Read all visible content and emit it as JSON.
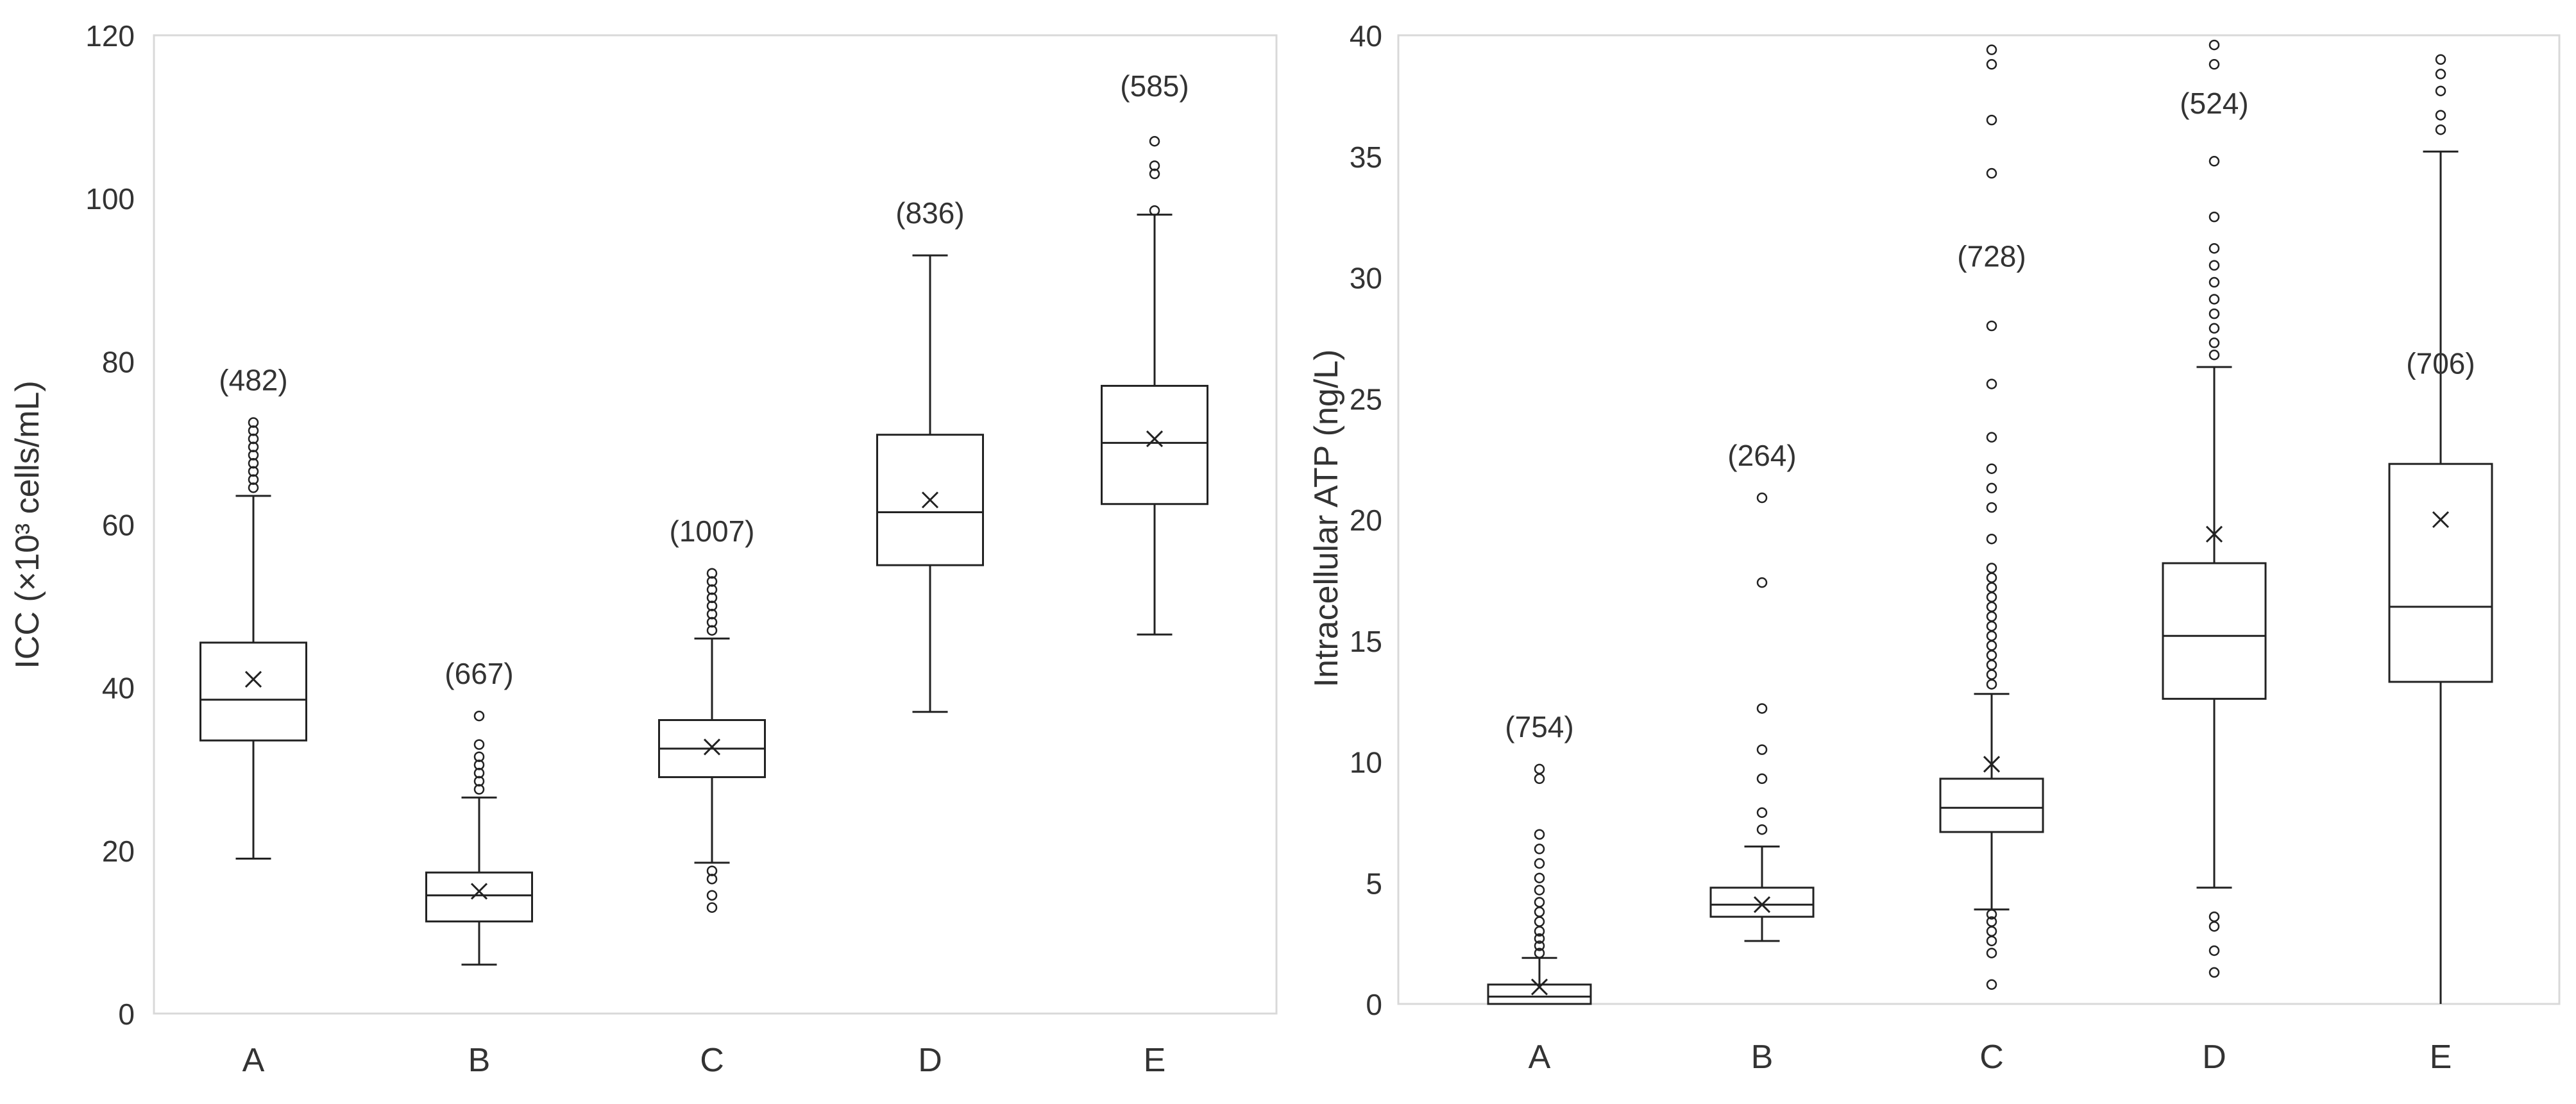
{
  "chart_data": [
    {
      "type": "box",
      "title": "",
      "xlabel": "",
      "ylabel": "ICC (×10³ cells/mL)",
      "ylim": [
        0,
        120
      ],
      "yticks": [
        0,
        20,
        40,
        60,
        80,
        100,
        120
      ],
      "ytick_labels": [
        "0",
        "20",
        "40",
        "60",
        "80",
        "100",
        "120"
      ],
      "grid": false,
      "categories": [
        "A",
        "B",
        "C",
        "D",
        "E"
      ],
      "boxes": [
        {
          "category": "A",
          "n_label": "(482)",
          "whisker_low": 19,
          "q1": 33.5,
          "median": 38.5,
          "q3": 45.5,
          "whisker_high": 63.5,
          "mean": 41,
          "outliers": [
            64.5,
            65.5,
            66.5,
            67.5,
            68.5,
            69.5,
            70.5,
            71.5,
            72.5
          ]
        },
        {
          "category": "B",
          "n_label": "(667)",
          "whisker_low": 6,
          "q1": 11.3,
          "median": 14.5,
          "q3": 17.3,
          "whisker_high": 26.5,
          "mean": 15,
          "outliers": [
            27.5,
            28.5,
            29.5,
            30.5,
            31.5,
            33,
            36.5
          ]
        },
        {
          "category": "C",
          "n_label": "(1007)",
          "whisker_low": 18.5,
          "q1": 29,
          "median": 32.5,
          "q3": 36,
          "whisker_high": 46,
          "mean": 32.7,
          "outliers": [
            13,
            14.5,
            16.5,
            17.5,
            47,
            48,
            49,
            50,
            51,
            52,
            53,
            54
          ]
        },
        {
          "category": "D",
          "n_label": "(836)",
          "whisker_low": 37,
          "q1": 55,
          "median": 61.5,
          "q3": 71,
          "whisker_high": 93,
          "mean": 63,
          "outliers": []
        },
        {
          "category": "E",
          "n_label": "(585)",
          "whisker_low": 46.5,
          "q1": 62.5,
          "median": 70,
          "q3": 77,
          "whisker_high": 98,
          "mean": 70.5,
          "outliers": [
            98.5,
            103,
            104,
            107
          ]
        }
      ]
    },
    {
      "type": "box",
      "title": "",
      "xlabel": "",
      "ylabel": "Intracellular ATP (ng/L)",
      "ylim": [
        0,
        40
      ],
      "yticks": [
        0,
        5,
        10,
        15,
        20,
        25,
        30,
        35,
        40
      ],
      "ytick_labels": [
        "0",
        "5",
        "10",
        "15",
        "20",
        "25",
        "30",
        "35",
        "40"
      ],
      "grid": false,
      "categories": [
        "A",
        "B",
        "C",
        "D",
        "E"
      ],
      "boxes": [
        {
          "category": "A",
          "n_label": "(754)",
          "whisker_low": 0,
          "q1": 0,
          "median": 0.3,
          "q3": 0.8,
          "whisker_high": 1.9,
          "mean": 0.7,
          "outliers": [
            2.1,
            2.4,
            2.7,
            3.0,
            3.4,
            3.8,
            4.2,
            4.7,
            5.2,
            5.8,
            6.4,
            7.0,
            9.3,
            9.7
          ]
        },
        {
          "category": "B",
          "n_label": "(264)",
          "whisker_low": 2.6,
          "q1": 3.6,
          "median": 4.1,
          "q3": 4.8,
          "whisker_high": 6.5,
          "mean": 4.1,
          "outliers": [
            7.2,
            7.9,
            9.3,
            10.5,
            12.2,
            17.4,
            20.9
          ]
        },
        {
          "category": "C",
          "n_label": "(728)",
          "whisker_low": 3.9,
          "q1": 7.1,
          "median": 8.1,
          "q3": 9.3,
          "whisker_high": 12.8,
          "mean": 9.9,
          "outliers": [
            0.8,
            2.1,
            2.6,
            3.0,
            3.4,
            3.7,
            13.2,
            13.6,
            14.0,
            14.4,
            14.8,
            15.2,
            15.6,
            16.0,
            16.4,
            16.8,
            17.2,
            17.6,
            18.0,
            19.2,
            20.5,
            21.3,
            22.1,
            23.4,
            25.6,
            28.0,
            34.3,
            36.5,
            38.8,
            39.4
          ]
        },
        {
          "category": "D",
          "n_label": "(524)",
          "whisker_low": 4.8,
          "q1": 12.6,
          "median": 15.2,
          "q3": 18.2,
          "whisker_high": 26.3,
          "mean": 19.4,
          "outliers": [
            1.3,
            2.2,
            3.2,
            3.6,
            26.8,
            27.3,
            27.9,
            28.5,
            29.1,
            29.8,
            30.5,
            31.2,
            32.5,
            34.8,
            38.8,
            39.6
          ]
        },
        {
          "category": "E",
          "n_label": "(706)",
          "whisker_low": 0,
          "q1": 13.3,
          "median": 16.4,
          "q3": 22.3,
          "whisker_high": 35.2,
          "mean": 20,
          "outliers": [
            36.1,
            36.7,
            37.7,
            38.4,
            39.0
          ]
        }
      ]
    }
  ]
}
